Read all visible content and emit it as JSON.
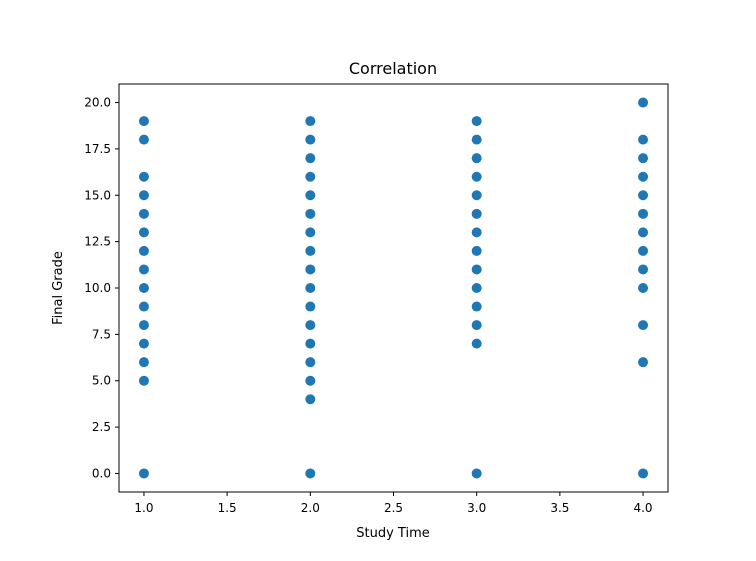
{
  "chart_data": {
    "type": "scatter",
    "title": "Correlation",
    "xlabel": "Study Time",
    "ylabel": "Final Grade",
    "xlim": [
      0.85,
      4.15
    ],
    "ylim": [
      -1.0,
      21.0
    ],
    "xticks": [
      1.0,
      1.5,
      2.0,
      2.5,
      3.0,
      3.5,
      4.0
    ],
    "xtick_labels": [
      "1.0",
      "1.5",
      "2.0",
      "2.5",
      "3.0",
      "3.5",
      "4.0"
    ],
    "yticks": [
      0.0,
      2.5,
      5.0,
      7.5,
      10.0,
      12.5,
      15.0,
      17.5,
      20.0
    ],
    "ytick_labels": [
      "0.0",
      "2.5",
      "5.0",
      "7.5",
      "10.0",
      "12.5",
      "15.0",
      "17.5",
      "20.0"
    ],
    "grid": false,
    "marker_color": "#1f77b4",
    "series": [
      {
        "x": [
          1,
          1,
          1,
          1,
          1,
          1,
          1,
          1,
          1,
          1,
          1,
          1,
          1,
          1,
          1,
          2,
          2,
          2,
          2,
          2,
          2,
          2,
          2,
          2,
          2,
          2,
          2,
          2,
          2,
          2,
          2,
          2,
          3,
          3,
          3,
          3,
          3,
          3,
          3,
          3,
          3,
          3,
          3,
          3,
          3,
          3,
          4,
          4,
          4,
          4,
          4,
          4,
          4,
          4,
          4,
          4,
          4,
          4,
          4
        ],
        "y": [
          0,
          5,
          6,
          7,
          8,
          9,
          10,
          11,
          12,
          13,
          14,
          15,
          16,
          18,
          19,
          0,
          4,
          5,
          6,
          7,
          8,
          9,
          10,
          11,
          12,
          13,
          14,
          15,
          16,
          17,
          18,
          19,
          0,
          7,
          8,
          9,
          10,
          11,
          12,
          13,
          14,
          15,
          16,
          17,
          18,
          19,
          0,
          6,
          8,
          10,
          11,
          12,
          13,
          14,
          15,
          16,
          17,
          18,
          20
        ]
      }
    ]
  }
}
